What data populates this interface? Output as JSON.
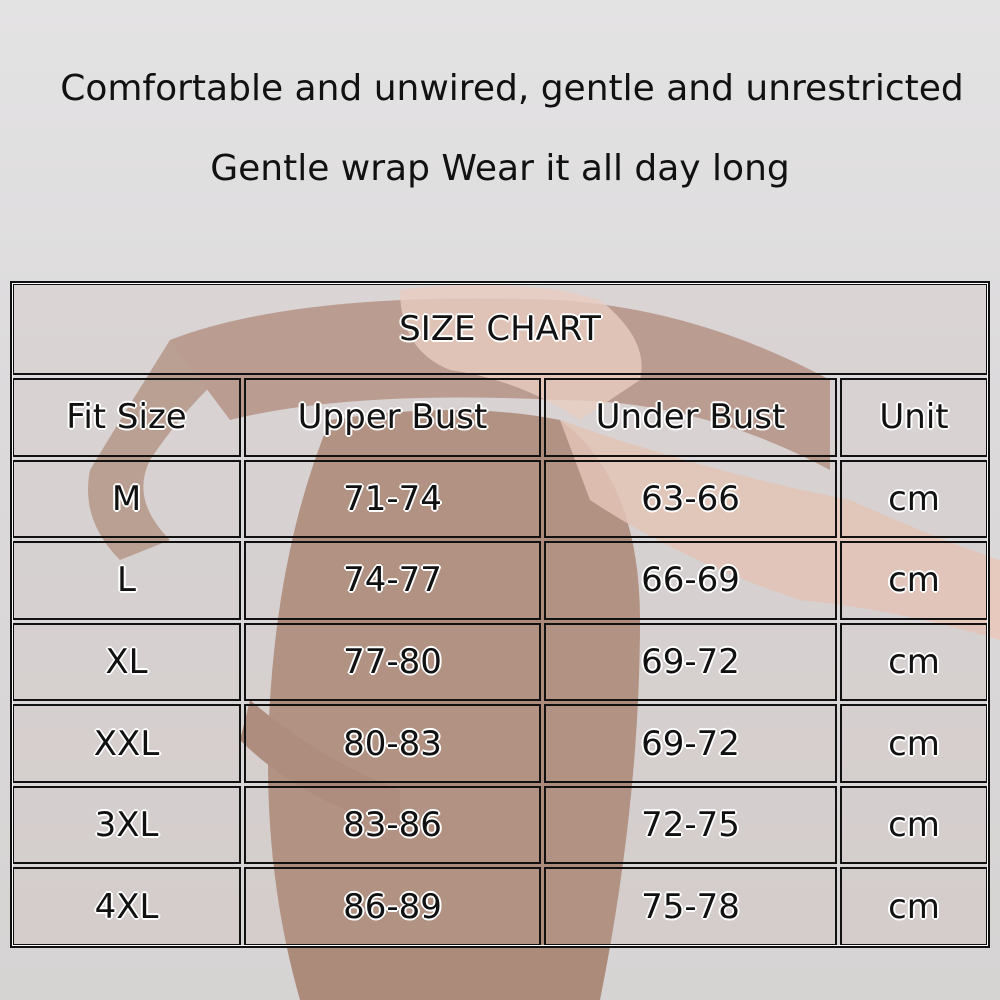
{
  "headline": {
    "line1": "Comfortable and unwired, gentle and unrestricted",
    "line2": "Gentle wrap Wear it all day long"
  },
  "size_chart": {
    "title": "SIZE CHART",
    "columns": [
      "Fit Size",
      "Upper Bust",
      "Under Bust",
      "Unit"
    ],
    "rows": [
      [
        "M",
        "71-74",
        "63-66",
        "cm"
      ],
      [
        "L",
        "74-77",
        "66-69",
        "cm"
      ],
      [
        "XL",
        "77-80",
        "69-72",
        "cm"
      ],
      [
        "XXL",
        "80-83",
        "69-72",
        "cm"
      ],
      [
        "3XL",
        "83-86",
        "72-75",
        "cm"
      ],
      [
        "4XL",
        "86-89",
        "75-78",
        "cm"
      ]
    ]
  },
  "colors": {
    "fabric": "#b39383",
    "background": "#e0dfe0",
    "border": "#111111"
  }
}
